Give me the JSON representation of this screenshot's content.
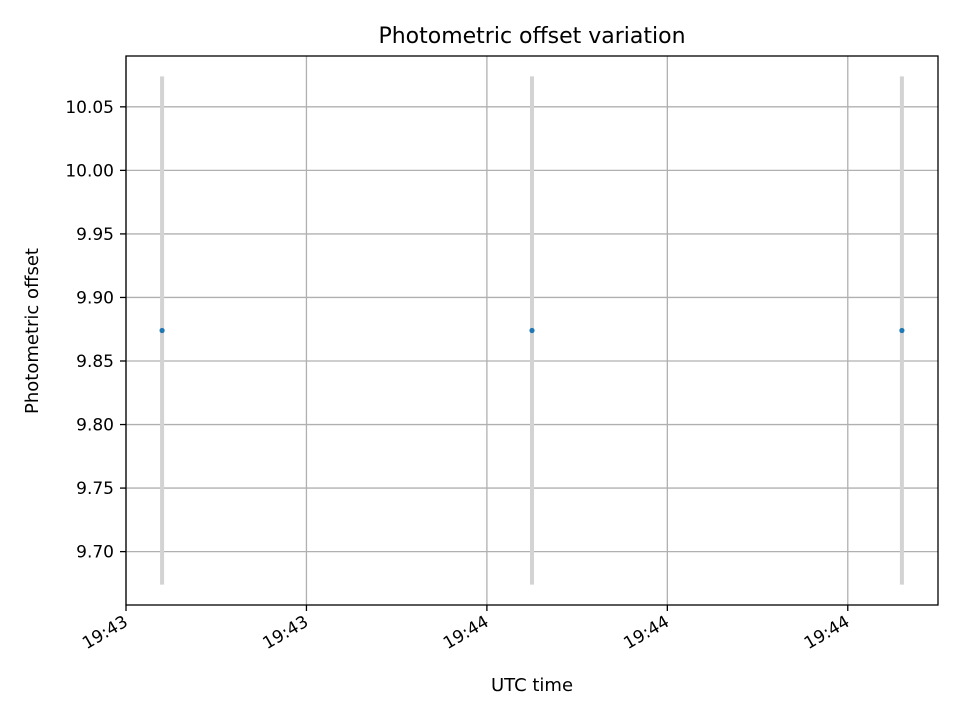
{
  "chart_data": {
    "type": "scatter",
    "title": "Photometric offset variation",
    "xlabel": "UTC time",
    "ylabel": "Photometric offset",
    "x_tick_labels": [
      "19:43",
      "19:43",
      "19:44",
      "19:44",
      "19:44"
    ],
    "x_ticks_seconds": [
      0,
      15,
      30,
      45,
      60
    ],
    "xlim_seconds": [
      0,
      67.5
    ],
    "y_ticks": [
      "9.70",
      "9.75",
      "9.80",
      "9.85",
      "9.90",
      "9.95",
      "10.00",
      "10.05"
    ],
    "ylim": [
      9.658,
      10.09
    ],
    "grid": true,
    "series": [
      {
        "x_seconds": [
          3,
          33.75,
          64.5
        ],
        "y": [
          9.874,
          9.874,
          9.874
        ],
        "yerr": [
          0.2,
          0.2,
          0.2
        ],
        "marker_color": "#1f77b4",
        "errorbar_color": "#d3d3d3"
      }
    ]
  }
}
